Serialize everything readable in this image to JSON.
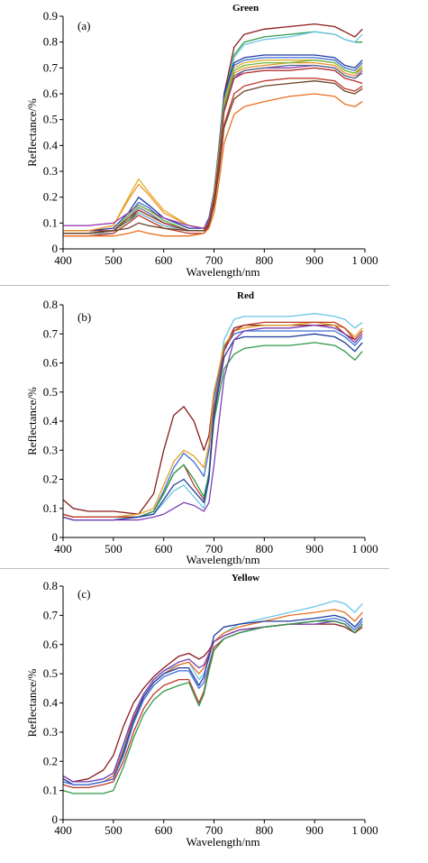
{
  "chart_data": [
    {
      "type": "line",
      "title": "Green",
      "panel_label": "(a)",
      "xlabel": "Wavelength/nm",
      "ylabel": "Reflectance/%",
      "xlim": [
        400,
        1000
      ],
      "ylim": [
        0,
        0.9
      ],
      "x_ticks": [
        400,
        500,
        600,
        700,
        800,
        900,
        1000
      ],
      "x_tick_labels": [
        "400",
        "500",
        "600",
        "700",
        "800",
        "900",
        "1 000"
      ],
      "y_ticks": [
        0,
        0.1,
        0.2,
        0.3,
        0.4,
        0.5,
        0.6,
        0.7,
        0.8,
        0.9
      ],
      "y_tick_labels": [
        "0",
        "0.1",
        "0.2",
        "0.3",
        "0.4",
        "0.5",
        "0.6",
        "0.7",
        "0.8",
        "0.9"
      ],
      "grid": false,
      "legend": false,
      "x": [
        400,
        450,
        500,
        530,
        550,
        570,
        600,
        650,
        680,
        690,
        700,
        710,
        720,
        740,
        760,
        800,
        850,
        900,
        940,
        960,
        980,
        995
      ],
      "series": [
        {
          "color": "#8b1a1a",
          "values": [
            0.07,
            0.07,
            0.07,
            0.11,
            0.14,
            0.12,
            0.09,
            0.07,
            0.07,
            0.1,
            0.2,
            0.38,
            0.6,
            0.78,
            0.83,
            0.85,
            0.86,
            0.87,
            0.86,
            0.84,
            0.82,
            0.85
          ]
        },
        {
          "color": "#2e9a4a",
          "values": [
            0.06,
            0.06,
            0.07,
            0.11,
            0.15,
            0.13,
            0.1,
            0.07,
            0.07,
            0.1,
            0.2,
            0.37,
            0.58,
            0.75,
            0.8,
            0.82,
            0.83,
            0.84,
            0.83,
            0.81,
            0.8,
            0.8
          ]
        },
        {
          "color": "#6cc5e6",
          "values": [
            0.06,
            0.06,
            0.06,
            0.1,
            0.14,
            0.12,
            0.09,
            0.07,
            0.07,
            0.1,
            0.19,
            0.36,
            0.57,
            0.74,
            0.79,
            0.81,
            0.82,
            0.84,
            0.83,
            0.81,
            0.8,
            0.83
          ]
        },
        {
          "color": "#1f3c9e",
          "values": [
            0.07,
            0.07,
            0.08,
            0.14,
            0.2,
            0.17,
            0.12,
            0.08,
            0.08,
            0.12,
            0.22,
            0.4,
            0.6,
            0.72,
            0.74,
            0.75,
            0.75,
            0.75,
            0.74,
            0.71,
            0.7,
            0.73
          ]
        },
        {
          "color": "#3b6fd8",
          "values": [
            0.06,
            0.06,
            0.07,
            0.13,
            0.18,
            0.16,
            0.11,
            0.07,
            0.07,
            0.11,
            0.21,
            0.38,
            0.58,
            0.71,
            0.73,
            0.74,
            0.74,
            0.74,
            0.73,
            0.7,
            0.69,
            0.72
          ]
        },
        {
          "color": "#e0b020",
          "values": [
            0.07,
            0.07,
            0.09,
            0.2,
            0.27,
            0.22,
            0.15,
            0.09,
            0.08,
            0.11,
            0.21,
            0.38,
            0.57,
            0.7,
            0.72,
            0.73,
            0.73,
            0.73,
            0.72,
            0.69,
            0.68,
            0.71
          ]
        },
        {
          "color": "#f0922a",
          "values": [
            0.07,
            0.07,
            0.09,
            0.19,
            0.25,
            0.21,
            0.14,
            0.09,
            0.08,
            0.11,
            0.2,
            0.36,
            0.55,
            0.68,
            0.7,
            0.71,
            0.72,
            0.72,
            0.71,
            0.68,
            0.67,
            0.7
          ]
        },
        {
          "color": "#9a3fb5",
          "values": [
            0.09,
            0.09,
            0.1,
            0.14,
            0.17,
            0.15,
            0.12,
            0.09,
            0.08,
            0.11,
            0.2,
            0.36,
            0.54,
            0.66,
            0.69,
            0.7,
            0.7,
            0.71,
            0.7,
            0.67,
            0.66,
            0.69
          ]
        },
        {
          "color": "#70b83a",
          "values": [
            0.06,
            0.06,
            0.07,
            0.13,
            0.17,
            0.15,
            0.11,
            0.07,
            0.07,
            0.1,
            0.2,
            0.37,
            0.56,
            0.69,
            0.71,
            0.72,
            0.72,
            0.73,
            0.72,
            0.69,
            0.68,
            0.7
          ]
        },
        {
          "color": "#5c6f8c",
          "values": [
            0.06,
            0.06,
            0.07,
            0.12,
            0.16,
            0.14,
            0.1,
            0.07,
            0.07,
            0.1,
            0.19,
            0.35,
            0.54,
            0.67,
            0.69,
            0.7,
            0.71,
            0.71,
            0.7,
            0.67,
            0.66,
            0.68
          ]
        },
        {
          "color": "#b03030",
          "values": [
            0.06,
            0.06,
            0.07,
            0.12,
            0.15,
            0.13,
            0.1,
            0.07,
            0.07,
            0.1,
            0.19,
            0.34,
            0.53,
            0.66,
            0.68,
            0.69,
            0.69,
            0.7,
            0.69,
            0.66,
            0.65,
            0.64
          ]
        },
        {
          "color": "#c0392b",
          "values": [
            0.05,
            0.05,
            0.06,
            0.1,
            0.13,
            0.11,
            0.08,
            0.06,
            0.06,
            0.09,
            0.17,
            0.31,
            0.48,
            0.6,
            0.63,
            0.65,
            0.66,
            0.66,
            0.65,
            0.62,
            0.61,
            0.63
          ]
        },
        {
          "color": "#6b4226",
          "values": [
            0.06,
            0.06,
            0.07,
            0.08,
            0.1,
            0.09,
            0.08,
            0.07,
            0.07,
            0.09,
            0.17,
            0.3,
            0.47,
            0.58,
            0.61,
            0.63,
            0.64,
            0.65,
            0.64,
            0.61,
            0.6,
            0.62
          ]
        },
        {
          "color": "#e8701e",
          "values": [
            0.05,
            0.05,
            0.05,
            0.06,
            0.07,
            0.06,
            0.05,
            0.05,
            0.06,
            0.08,
            0.14,
            0.26,
            0.41,
            0.52,
            0.55,
            0.57,
            0.59,
            0.6,
            0.59,
            0.56,
            0.55,
            0.57
          ]
        }
      ]
    },
    {
      "type": "line",
      "title": "Red",
      "panel_label": "(b)",
      "xlabel": "Wavelength/nm",
      "ylabel": "Reflectance/%",
      "xlim": [
        400,
        1000
      ],
      "ylim": [
        0,
        0.8
      ],
      "x_ticks": [
        400,
        500,
        600,
        700,
        800,
        900,
        1000
      ],
      "x_tick_labels": [
        "400",
        "500",
        "600",
        "700",
        "800",
        "900",
        "1 000"
      ],
      "y_ticks": [
        0,
        0.1,
        0.2,
        0.3,
        0.4,
        0.5,
        0.6,
        0.7,
        0.8
      ],
      "y_tick_labels": [
        "0",
        "0.1",
        "0.2",
        "0.3",
        "0.4",
        "0.5",
        "0.6",
        "0.7",
        "0.8"
      ],
      "grid": false,
      "legend": false,
      "x": [
        400,
        420,
        450,
        500,
        550,
        580,
        600,
        620,
        640,
        660,
        680,
        690,
        700,
        720,
        740,
        760,
        800,
        850,
        900,
        940,
        960,
        980,
        995
      ],
      "series": [
        {
          "color": "#8b1a1a",
          "values": [
            0.13,
            0.1,
            0.09,
            0.09,
            0.08,
            0.15,
            0.3,
            0.42,
            0.45,
            0.4,
            0.3,
            0.35,
            0.5,
            0.65,
            0.72,
            0.73,
            0.73,
            0.73,
            0.73,
            0.73,
            0.7,
            0.68,
            0.71
          ]
        },
        {
          "color": "#6cc5e6",
          "values": [
            0.08,
            0.07,
            0.07,
            0.07,
            0.07,
            0.08,
            0.12,
            0.16,
            0.18,
            0.14,
            0.1,
            0.2,
            0.45,
            0.68,
            0.75,
            0.76,
            0.76,
            0.76,
            0.77,
            0.76,
            0.75,
            0.72,
            0.74
          ]
        },
        {
          "color": "#3b6fd8",
          "values": [
            0.08,
            0.07,
            0.07,
            0.07,
            0.07,
            0.09,
            0.16,
            0.24,
            0.29,
            0.26,
            0.21,
            0.3,
            0.48,
            0.65,
            0.7,
            0.71,
            0.71,
            0.71,
            0.71,
            0.71,
            0.69,
            0.66,
            0.69
          ]
        },
        {
          "color": "#e0a020",
          "values": [
            0.08,
            0.07,
            0.07,
            0.07,
            0.08,
            0.1,
            0.18,
            0.26,
            0.3,
            0.28,
            0.24,
            0.32,
            0.5,
            0.66,
            0.71,
            0.72,
            0.73,
            0.73,
            0.74,
            0.73,
            0.72,
            0.69,
            0.72
          ]
        },
        {
          "color": "#c0392b",
          "values": [
            0.08,
            0.07,
            0.07,
            0.07,
            0.07,
            0.09,
            0.15,
            0.22,
            0.25,
            0.18,
            0.13,
            0.22,
            0.44,
            0.64,
            0.71,
            0.73,
            0.74,
            0.74,
            0.74,
            0.74,
            0.72,
            0.68,
            0.71
          ]
        },
        {
          "color": "#2e9a4a",
          "values": [
            0.07,
            0.06,
            0.06,
            0.06,
            0.07,
            0.09,
            0.15,
            0.22,
            0.25,
            0.2,
            0.14,
            0.22,
            0.4,
            0.58,
            0.63,
            0.65,
            0.66,
            0.66,
            0.67,
            0.66,
            0.64,
            0.61,
            0.64
          ]
        },
        {
          "color": "#1f3c9e",
          "values": [
            0.07,
            0.06,
            0.06,
            0.06,
            0.07,
            0.08,
            0.13,
            0.18,
            0.2,
            0.16,
            0.12,
            0.2,
            0.42,
            0.62,
            0.68,
            0.69,
            0.69,
            0.69,
            0.7,
            0.69,
            0.67,
            0.64,
            0.67
          ]
        },
        {
          "color": "#7b3fb5",
          "values": [
            0.07,
            0.06,
            0.06,
            0.06,
            0.06,
            0.07,
            0.08,
            0.1,
            0.12,
            0.11,
            0.09,
            0.12,
            0.25,
            0.55,
            0.68,
            0.71,
            0.72,
            0.72,
            0.73,
            0.72,
            0.7,
            0.67,
            0.7
          ]
        }
      ]
    },
    {
      "type": "line",
      "title": "Yellow",
      "panel_label": "(c)",
      "xlabel": "Wavelength/nm",
      "ylabel": "Reflectance/%",
      "xlim": [
        400,
        1000
      ],
      "ylim": [
        0,
        0.8
      ],
      "x_ticks": [
        400,
        500,
        600,
        700,
        800,
        900,
        1000
      ],
      "x_tick_labels": [
        "400",
        "500",
        "600",
        "700",
        "800",
        "900",
        "1 000"
      ],
      "y_ticks": [
        0,
        0.1,
        0.2,
        0.3,
        0.4,
        0.5,
        0.6,
        0.7,
        0.8
      ],
      "y_tick_labels": [
        "0",
        "0.1",
        "0.2",
        "0.3",
        "0.4",
        "0.5",
        "0.6",
        "0.7",
        "0.8"
      ],
      "grid": false,
      "legend": false,
      "x": [
        400,
        420,
        450,
        480,
        500,
        520,
        540,
        560,
        580,
        600,
        630,
        650,
        670,
        680,
        690,
        700,
        720,
        750,
        800,
        850,
        900,
        940,
        960,
        980,
        995
      ],
      "series": [
        {
          "color": "#6cc5e6",
          "values": [
            0.15,
            0.13,
            0.13,
            0.14,
            0.16,
            0.25,
            0.36,
            0.43,
            0.48,
            0.51,
            0.53,
            0.54,
            0.48,
            0.5,
            0.55,
            0.61,
            0.64,
            0.67,
            0.69,
            0.71,
            0.73,
            0.75,
            0.74,
            0.71,
            0.74
          ]
        },
        {
          "color": "#8b1a1a",
          "values": [
            0.15,
            0.13,
            0.14,
            0.17,
            0.22,
            0.32,
            0.4,
            0.45,
            0.49,
            0.52,
            0.56,
            0.57,
            0.55,
            0.56,
            0.58,
            0.61,
            0.63,
            0.65,
            0.66,
            0.67,
            0.67,
            0.67,
            0.66,
            0.64,
            0.66
          ]
        },
        {
          "color": "#e8701e",
          "values": [
            0.14,
            0.12,
            0.12,
            0.13,
            0.15,
            0.24,
            0.35,
            0.42,
            0.47,
            0.5,
            0.53,
            0.54,
            0.5,
            0.52,
            0.56,
            0.61,
            0.64,
            0.66,
            0.68,
            0.7,
            0.71,
            0.72,
            0.71,
            0.68,
            0.71
          ]
        },
        {
          "color": "#1f3c9e",
          "values": [
            0.14,
            0.12,
            0.12,
            0.13,
            0.14,
            0.23,
            0.34,
            0.42,
            0.47,
            0.5,
            0.52,
            0.52,
            0.46,
            0.49,
            0.56,
            0.63,
            0.66,
            0.67,
            0.68,
            0.68,
            0.69,
            0.7,
            0.69,
            0.66,
            0.69
          ]
        },
        {
          "color": "#3b6fd8",
          "values": [
            0.13,
            0.12,
            0.12,
            0.13,
            0.14,
            0.22,
            0.33,
            0.41,
            0.46,
            0.49,
            0.51,
            0.51,
            0.45,
            0.47,
            0.53,
            0.59,
            0.62,
            0.64,
            0.66,
            0.67,
            0.68,
            0.69,
            0.68,
            0.65,
            0.68
          ]
        },
        {
          "color": "#7b3fb5",
          "values": [
            0.15,
            0.13,
            0.13,
            0.14,
            0.16,
            0.26,
            0.36,
            0.43,
            0.48,
            0.51,
            0.54,
            0.55,
            0.52,
            0.53,
            0.57,
            0.61,
            0.63,
            0.65,
            0.66,
            0.67,
            0.67,
            0.68,
            0.67,
            0.64,
            0.67
          ]
        },
        {
          "color": "#c0392b",
          "values": [
            0.12,
            0.11,
            0.11,
            0.12,
            0.13,
            0.2,
            0.3,
            0.38,
            0.43,
            0.46,
            0.48,
            0.48,
            0.4,
            0.44,
            0.52,
            0.59,
            0.62,
            0.64,
            0.66,
            0.67,
            0.68,
            0.68,
            0.67,
            0.64,
            0.66
          ]
        },
        {
          "color": "#2e9a4a",
          "values": [
            0.1,
            0.09,
            0.09,
            0.09,
            0.1,
            0.18,
            0.28,
            0.36,
            0.41,
            0.44,
            0.46,
            0.47,
            0.39,
            0.43,
            0.51,
            0.58,
            0.62,
            0.64,
            0.66,
            0.67,
            0.68,
            0.68,
            0.67,
            0.64,
            0.67
          ]
        }
      ]
    }
  ]
}
